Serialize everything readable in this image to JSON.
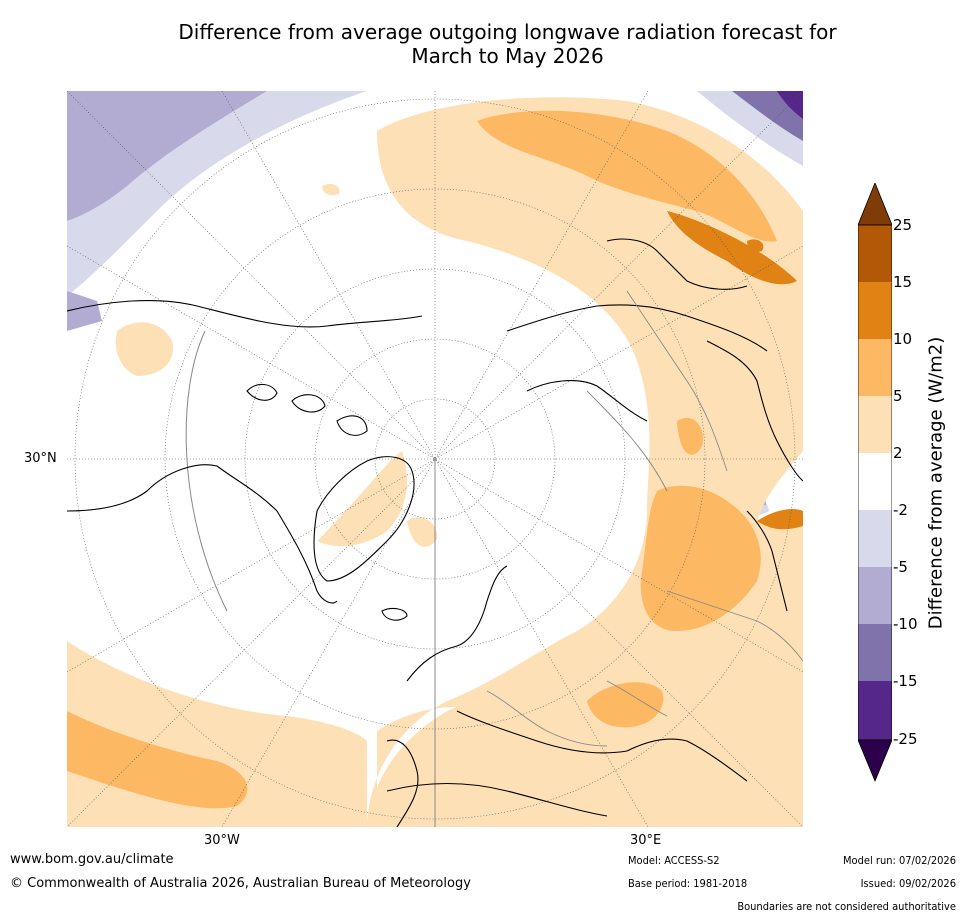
{
  "title": {
    "line1": "Difference from average outgoing longwave radiation forecast for",
    "line2": "March to May 2026"
  },
  "map": {
    "projection": "north-polar-stereographic",
    "lat_label": "30°N",
    "lon_labels": [
      "30°W",
      "30°E"
    ]
  },
  "colorbar": {
    "label": "Difference from average (W/m2)",
    "ticks": [
      "25",
      "15",
      "10",
      "5",
      "2",
      "-2",
      "-5",
      "-10",
      "-15",
      "-25"
    ],
    "bins": [
      {
        "range": ">25",
        "color": "#7f3b08"
      },
      {
        "range": "15 to 25",
        "color": "#b35806"
      },
      {
        "range": "10 to 15",
        "color": "#e08214"
      },
      {
        "range": "5 to 10",
        "color": "#fdb863"
      },
      {
        "range": "2 to 5",
        "color": "#fee0b6"
      },
      {
        "range": "-2 to 2",
        "color": "#ffffff"
      },
      {
        "range": "-5 to -2",
        "color": "#d8daeb"
      },
      {
        "range": "-10 to -5",
        "color": "#b2abd2"
      },
      {
        "range": "-15 to -10",
        "color": "#8073ac"
      },
      {
        "range": "-25 to -15",
        "color": "#542788"
      },
      {
        "range": "<-25",
        "color": "#2d004b"
      }
    ]
  },
  "footer": {
    "website": "www.bom.gov.au/climate",
    "copyright": "© Commonwealth of Australia 2026, Australian Bureau of Meteorology",
    "model": "Model: ACCESS-S2",
    "base_period": "Base period: 1981-2018",
    "model_run": "Model run: 07/02/2026",
    "issued": "Issued: 09/02/2026",
    "disclaimer": "Boundaries are not considered authoritative"
  }
}
